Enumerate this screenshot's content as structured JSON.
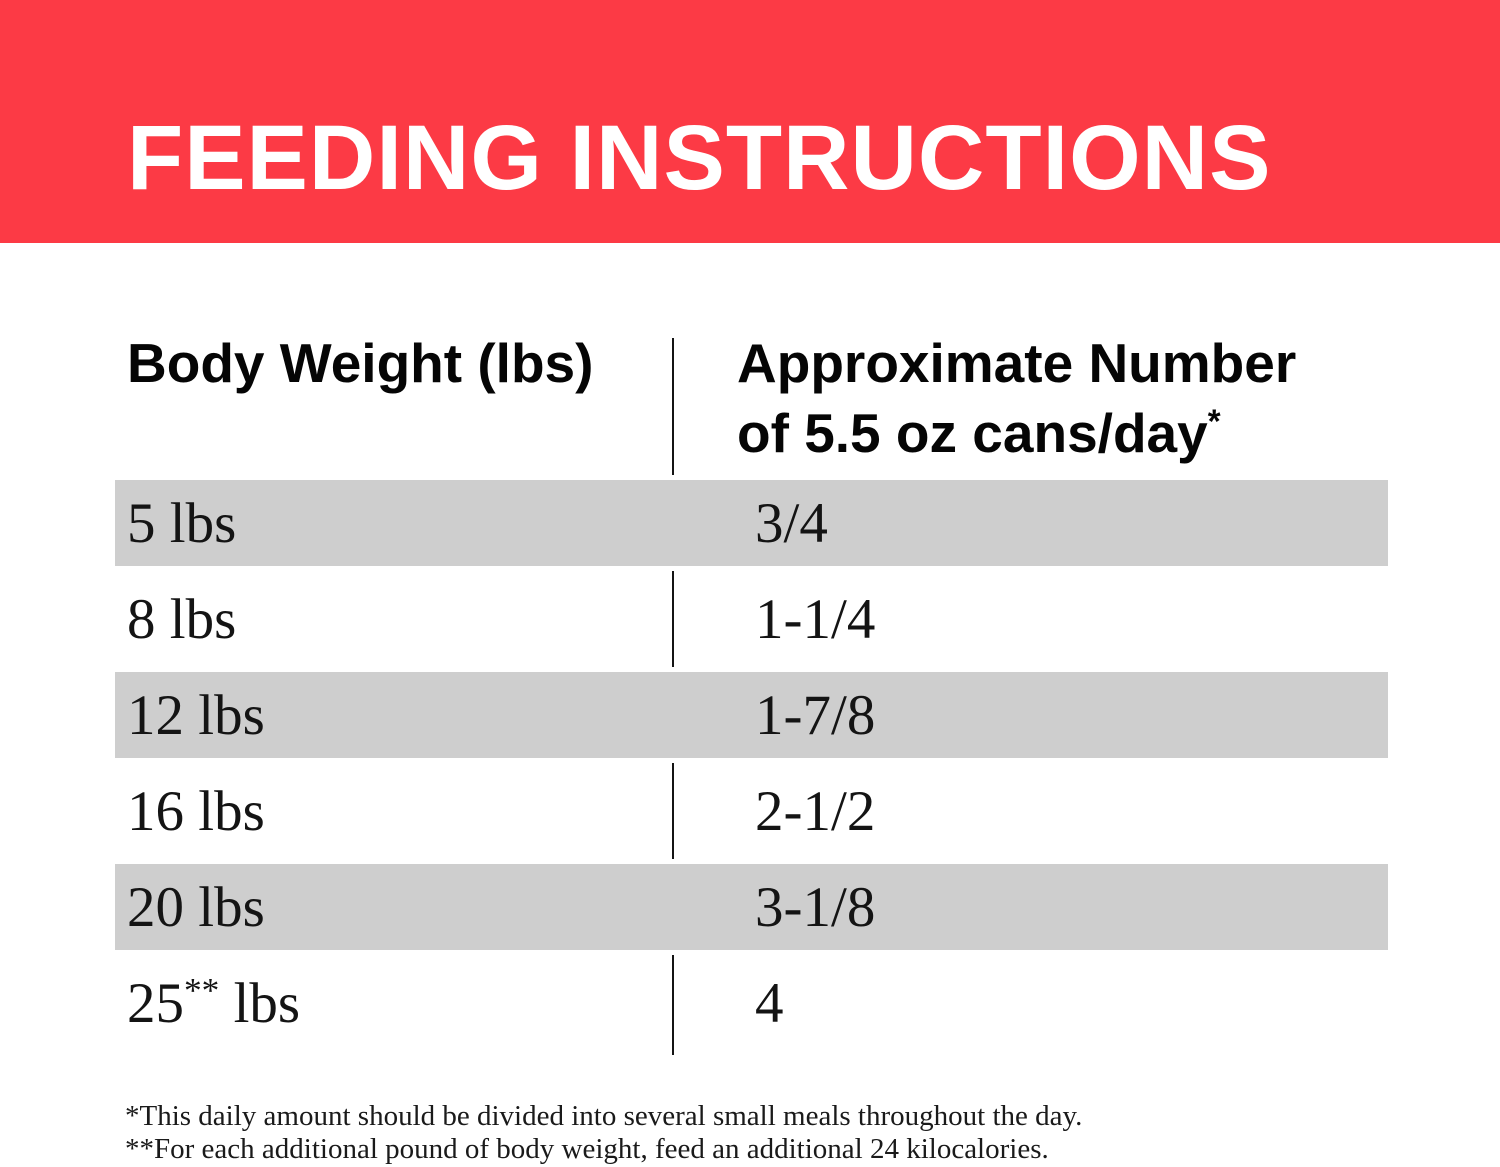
{
  "banner": {
    "title": "FEEDING INSTRUCTIONS",
    "bg_color": "#fc3a45",
    "text_color": "#ffffff"
  },
  "table": {
    "col1_header": "Body Weight (lbs)",
    "col2_header_line1": "Approximate Number",
    "col2_header_line2": "of 5.5 oz cans/day",
    "col2_header_footnote_marker": "*",
    "stripe_color": "#cecece",
    "rows": [
      {
        "weight": "5",
        "weight_sup": "",
        "weight_unit": " lbs",
        "cans": "3/4"
      },
      {
        "weight": "8",
        "weight_sup": "",
        "weight_unit": " lbs",
        "cans": "1-1/4"
      },
      {
        "weight": "12",
        "weight_sup": "",
        "weight_unit": " lbs",
        "cans": "1-7/8"
      },
      {
        "weight": "16",
        "weight_sup": "",
        "weight_unit": " lbs",
        "cans": "2-1/2"
      },
      {
        "weight": "20",
        "weight_sup": "",
        "weight_unit": " lbs",
        "cans": "3-1/8"
      },
      {
        "weight": "25",
        "weight_sup": "**",
        "weight_unit": " lbs",
        "cans": "4"
      }
    ]
  },
  "footnotes": [
    "*This daily amount should be divided into several small meals throughout the day.",
    "**For each additional pound of body weight, feed an additional 24 kilocalories."
  ]
}
